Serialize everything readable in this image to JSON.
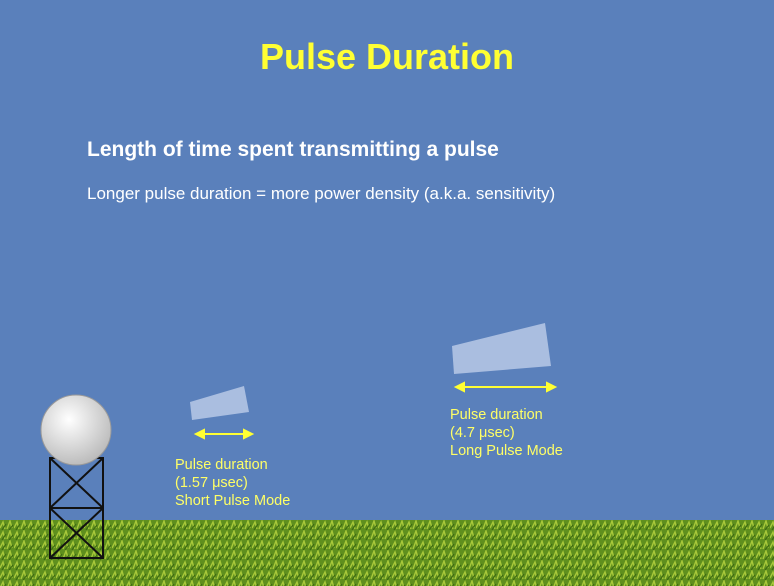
{
  "title": "Pulse Duration",
  "subtitle": "Length of time spent transmitting a pulse",
  "body": "Longer pulse duration = more power density (a.k.a. sensitivity)",
  "pulses": [
    {
      "lines": [
        "Pulse duration",
        "(1.57 μsec)",
        "Short Pulse Mode"
      ]
    },
    {
      "lines": [
        "Pulse duration",
        "(4.7 μsec)",
        "Long Pulse Mode"
      ]
    }
  ]
}
